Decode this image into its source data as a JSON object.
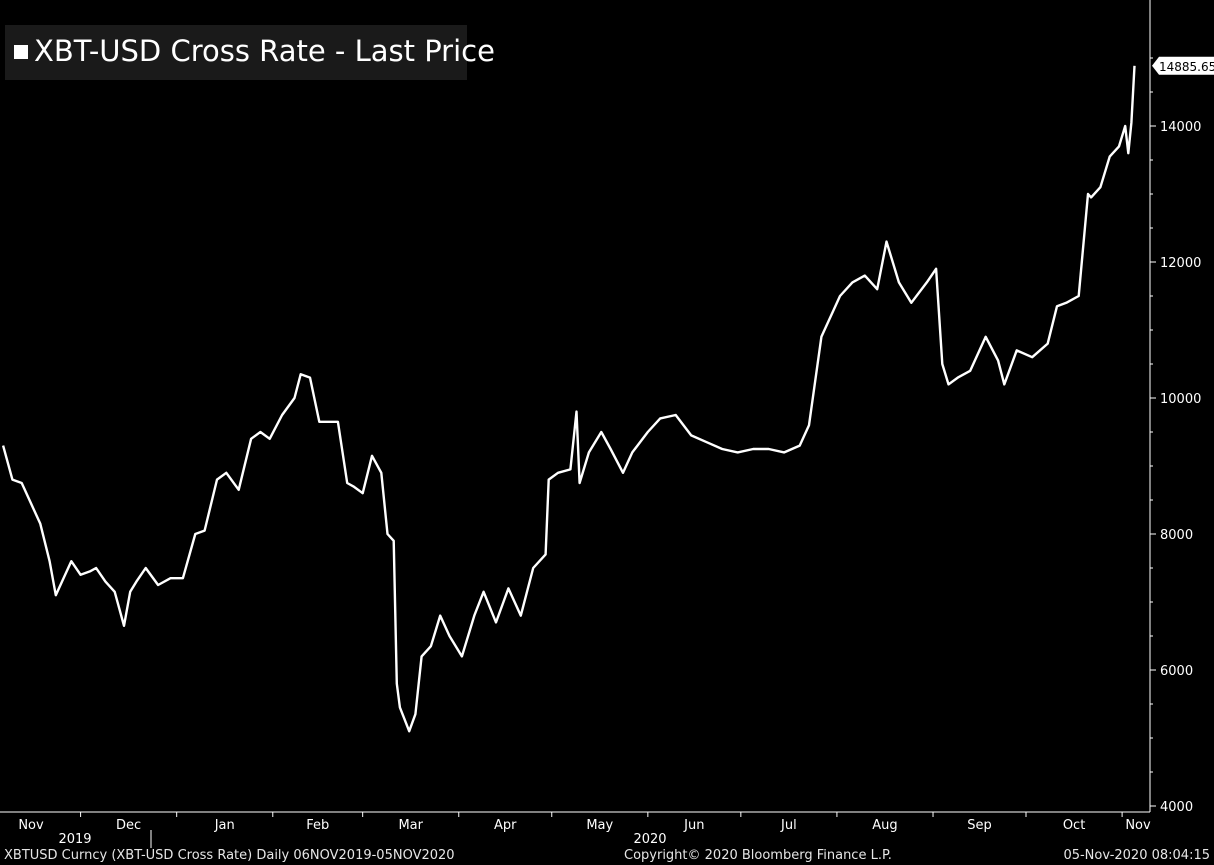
{
  "legend": {
    "label": "XBT-USD Cross Rate - Last Price"
  },
  "footer": {
    "left": "XBTUSD Curncy (XBT-USD Cross Rate)  Daily 06NOV2019-05NOV2020",
    "center": "Copyright© 2020 Bloomberg Finance L.P.",
    "right": "05-Nov-2020 08:04:15"
  },
  "colors": {
    "background": "#000000",
    "line": "#ffffff",
    "axis": "#ffffff",
    "legend_bg": "#1a1a1a"
  },
  "chart_data": {
    "type": "line",
    "title": "",
    "xlabel": "",
    "ylabel": "",
    "ylim": [
      4000,
      15800
    ],
    "y_ticks": [
      4000,
      6000,
      8000,
      10000,
      12000,
      14000
    ],
    "y_tick_labels": [
      "4000",
      "6000",
      "8000",
      "10000",
      "12000",
      "14000"
    ],
    "x_range": [
      "2019-11-06",
      "2020-11-05"
    ],
    "month_ticks": [
      {
        "label": "Nov",
        "date": "2019-11-01"
      },
      {
        "label": "Dec",
        "date": "2019-12-01"
      },
      {
        "label": "Jan",
        "date": "2020-01-01"
      },
      {
        "label": "Feb",
        "date": "2020-02-01"
      },
      {
        "label": "Mar",
        "date": "2020-03-01"
      },
      {
        "label": "Apr",
        "date": "2020-04-01"
      },
      {
        "label": "May",
        "date": "2020-05-01"
      },
      {
        "label": "Jun",
        "date": "2020-06-01"
      },
      {
        "label": "Jul",
        "date": "2020-07-01"
      },
      {
        "label": "Aug",
        "date": "2020-08-01"
      },
      {
        "label": "Sep",
        "date": "2020-09-01"
      },
      {
        "label": "Oct",
        "date": "2020-10-01"
      },
      {
        "label": "Nov",
        "date": "2020-11-01"
      }
    ],
    "year_labels": [
      {
        "label": "2019",
        "date": "2019-11-15"
      },
      {
        "label": "2020",
        "date": "2020-05-27"
      }
    ],
    "last_value_label": "14885.65",
    "last_value": 14885.65,
    "grid": false,
    "legend_position": "top-left",
    "series": [
      {
        "name": "XBT-USD Cross Rate - Last Price",
        "x": [
          "2019-11-06",
          "2019-11-09",
          "2019-11-12",
          "2019-11-15",
          "2019-11-18",
          "2019-11-21",
          "2019-11-23",
          "2019-11-25",
          "2019-11-28",
          "2019-12-01",
          "2019-12-04",
          "2019-12-06",
          "2019-12-09",
          "2019-12-12",
          "2019-12-15",
          "2019-12-17",
          "2019-12-19",
          "2019-12-22",
          "2019-12-26",
          "2019-12-30",
          "2020-01-03",
          "2020-01-07",
          "2020-01-10",
          "2020-01-14",
          "2020-01-17",
          "2020-01-21",
          "2020-01-25",
          "2020-01-28",
          "2020-01-31",
          "2020-02-04",
          "2020-02-08",
          "2020-02-10",
          "2020-02-13",
          "2020-02-16",
          "2020-02-19",
          "2020-02-22",
          "2020-02-25",
          "2020-02-27",
          "2020-03-01",
          "2020-03-04",
          "2020-03-07",
          "2020-03-09",
          "2020-03-11",
          "2020-03-12",
          "2020-03-13",
          "2020-03-16",
          "2020-03-18",
          "2020-03-20",
          "2020-03-23",
          "2020-03-26",
          "2020-03-29",
          "2020-04-02",
          "2020-04-06",
          "2020-04-09",
          "2020-04-13",
          "2020-04-17",
          "2020-04-21",
          "2020-04-25",
          "2020-04-29",
          "2020-04-30",
          "2020-05-03",
          "2020-05-07",
          "2020-05-09",
          "2020-05-10",
          "2020-05-13",
          "2020-05-17",
          "2020-05-20",
          "2020-05-24",
          "2020-05-27",
          "2020-06-01",
          "2020-06-05",
          "2020-06-10",
          "2020-06-15",
          "2020-06-20",
          "2020-06-25",
          "2020-06-30",
          "2020-07-05",
          "2020-07-10",
          "2020-07-15",
          "2020-07-20",
          "2020-07-23",
          "2020-07-27",
          "2020-07-31",
          "2020-08-02",
          "2020-08-06",
          "2020-08-10",
          "2020-08-14",
          "2020-08-17",
          "2020-08-21",
          "2020-08-25",
          "2020-08-30",
          "2020-09-02",
          "2020-09-04",
          "2020-09-06",
          "2020-09-09",
          "2020-09-13",
          "2020-09-18",
          "2020-09-22",
          "2020-09-24",
          "2020-09-28",
          "2020-10-03",
          "2020-10-08",
          "2020-10-11",
          "2020-10-14",
          "2020-10-18",
          "2020-10-21",
          "2020-10-22",
          "2020-10-25",
          "2020-10-28",
          "2020-10-31",
          "2020-11-02",
          "2020-11-03",
          "2020-11-04",
          "2020-11-05"
        ],
        "values": [
          9300,
          8800,
          8750,
          8450,
          8150,
          7600,
          7100,
          7300,
          7600,
          7400,
          7450,
          7500,
          7300,
          7150,
          6650,
          7150,
          7300,
          7500,
          7250,
          7350,
          7350,
          8000,
          8050,
          8800,
          8900,
          8650,
          9400,
          9500,
          9400,
          9750,
          10000,
          10350,
          10300,
          9650,
          9650,
          9650,
          8750,
          8700,
          8600,
          9150,
          8900,
          8000,
          7900,
          5800,
          5450,
          5100,
          5350,
          6200,
          6350,
          6800,
          6500,
          6200,
          6800,
          7150,
          6700,
          7200,
          6800,
          7500,
          7700,
          8800,
          8900,
          8950,
          9800,
          8750,
          9200,
          9500,
          9250,
          8900,
          9200,
          9500,
          9700,
          9750,
          9450,
          9350,
          9250,
          9200,
          9250,
          9250,
          9200,
          9300,
          9600,
          10900,
          11300,
          11500,
          11700,
          11800,
          11600,
          12300,
          11700,
          11400,
          11700,
          11900,
          10500,
          10200,
          10300,
          10400,
          10900,
          10550,
          10200,
          10700,
          10600,
          10800,
          11350,
          11400,
          11500,
          13000,
          12950,
          13100,
          13550,
          13700,
          14000,
          13600,
          14050,
          14885.65
        ]
      }
    ]
  }
}
